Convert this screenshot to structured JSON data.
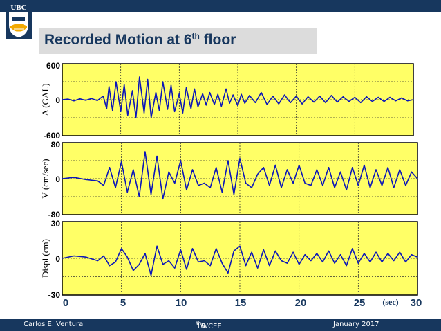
{
  "logo": {
    "text": "UBC",
    "colors": {
      "crest": "#17375e",
      "gold": "#f2a900",
      "white": "#ffffff"
    }
  },
  "title": {
    "main": "Recorded Motion at 6",
    "sup": "th",
    "rest": " floor"
  },
  "footer": {
    "author": "Carlos E. Ventura",
    "conf_num": "16",
    "conf_sup": "th",
    "conf_name": " WCEE",
    "date": "January 2017"
  },
  "colors": {
    "header": "#17375e",
    "plot_bg": "#ffff66",
    "trace": "#0b16b8",
    "grid": "#333333"
  },
  "chart_data": [
    {
      "type": "line",
      "ylabel": "A (GAL)",
      "ylim": [
        -600,
        600
      ],
      "yticks": [
        "600",
        "0",
        "-600"
      ],
      "grid": true,
      "x": [
        0,
        0.5,
        1,
        1.5,
        2,
        2.5,
        3,
        3.5,
        3.8,
        4,
        4.3,
        4.6,
        5,
        5.3,
        5.6,
        6,
        6.3,
        6.6,
        7,
        7.3,
        7.6,
        8,
        8.3,
        8.6,
        9,
        9.3,
        9.6,
        10,
        10.3,
        10.6,
        11,
        11.3,
        11.6,
        12,
        12.3,
        12.6,
        13,
        13.3,
        13.6,
        14,
        14.3,
        14.6,
        15,
        15.3,
        15.6,
        16,
        16.5,
        17,
        17.5,
        18,
        18.5,
        19,
        19.5,
        20,
        20.5,
        21,
        21.5,
        22,
        22.5,
        23,
        23.5,
        24,
        24.5,
        25,
        25.5,
        26,
        26.5,
        27,
        27.5,
        28,
        28.5,
        29,
        29.5,
        30
      ],
      "values": [
        0,
        10,
        -20,
        15,
        -10,
        20,
        -15,
        60,
        -150,
        220,
        -180,
        300,
        -200,
        250,
        -260,
        150,
        -300,
        380,
        -220,
        340,
        -300,
        120,
        -180,
        300,
        -160,
        240,
        -200,
        100,
        -220,
        200,
        -150,
        180,
        -120,
        100,
        -90,
        120,
        -80,
        90,
        -110,
        180,
        -60,
        80,
        -100,
        90,
        -60,
        70,
        -50,
        120,
        -80,
        60,
        -70,
        80,
        -50,
        60,
        -70,
        50,
        -40,
        60,
        -50,
        70,
        -40,
        50,
        -30,
        40,
        -50,
        50,
        -30,
        40,
        -30,
        40,
        -20,
        30,
        -20,
        0
      ]
    },
    {
      "type": "line",
      "ylabel": "V (cm/sec)",
      "ylim": [
        -80,
        80
      ],
      "yticks": [
        "80",
        "0",
        "-80"
      ],
      "grid": true,
      "x": [
        0,
        1,
        2,
        3,
        3.5,
        4,
        4.5,
        5,
        5.5,
        6,
        6.5,
        7,
        7.5,
        8,
        8.5,
        9,
        9.5,
        10,
        10.5,
        11,
        11.5,
        12,
        12.5,
        13,
        13.5,
        14,
        14.5,
        15,
        15.5,
        16,
        16.5,
        17,
        17.5,
        18,
        18.5,
        19,
        19.5,
        20,
        20.5,
        21,
        21.5,
        22,
        22.5,
        23,
        23.5,
        24,
        24.5,
        25,
        25.5,
        26,
        26.5,
        27,
        27.5,
        28,
        28.5,
        29,
        29.5,
        30
      ],
      "values": [
        0,
        3,
        -2,
        -5,
        -15,
        25,
        -20,
        38,
        -30,
        20,
        -40,
        60,
        -35,
        50,
        -45,
        15,
        -10,
        40,
        -25,
        20,
        -15,
        -10,
        -20,
        25,
        -30,
        40,
        -35,
        45,
        -10,
        -20,
        10,
        25,
        -15,
        30,
        -20,
        20,
        -10,
        30,
        -10,
        -15,
        20,
        -15,
        25,
        -20,
        15,
        -25,
        25,
        -15,
        30,
        -20,
        20,
        -15,
        25,
        -20,
        20,
        -15,
        15,
        0
      ]
    },
    {
      "type": "line",
      "ylabel": "Displ (cm)",
      "ylim": [
        -30,
        30
      ],
      "yticks": [
        "30",
        "0",
        "-30"
      ],
      "grid": true,
      "x": [
        0,
        1,
        2,
        3,
        3.5,
        4,
        4.5,
        5,
        5.5,
        6,
        6.5,
        7,
        7.5,
        8,
        8.5,
        9,
        9.5,
        10,
        10.5,
        11,
        11.5,
        12,
        12.5,
        13,
        13.5,
        14,
        14.5,
        15,
        15.5,
        16,
        16.5,
        17,
        17.5,
        18,
        18.5,
        19,
        19.5,
        20,
        20.5,
        21,
        21.5,
        22,
        22.5,
        23,
        23.5,
        24,
        24.5,
        25,
        25.5,
        26,
        26.5,
        27,
        27.5,
        28,
        28.5,
        29,
        29.5,
        30
      ],
      "values": [
        0,
        2,
        1,
        -2,
        2,
        -6,
        -3,
        8,
        1,
        -10,
        -5,
        4,
        -14,
        10,
        -5,
        -2,
        -8,
        7,
        -9,
        8,
        -3,
        -2,
        -6,
        8,
        -4,
        -12,
        6,
        10,
        -6,
        5,
        -8,
        7,
        -6,
        6,
        -2,
        -4,
        5,
        -5,
        3,
        -2,
        4,
        -3,
        6,
        -4,
        3,
        -6,
        8,
        -4,
        4,
        -3,
        5,
        -3,
        4,
        -2,
        5,
        -3,
        3,
        1
      ],
      "xlabel": "(sec)",
      "xlim": [
        0,
        30
      ],
      "xticks": [
        "0",
        "5",
        "10",
        "15",
        "20",
        "25",
        "30"
      ]
    }
  ]
}
